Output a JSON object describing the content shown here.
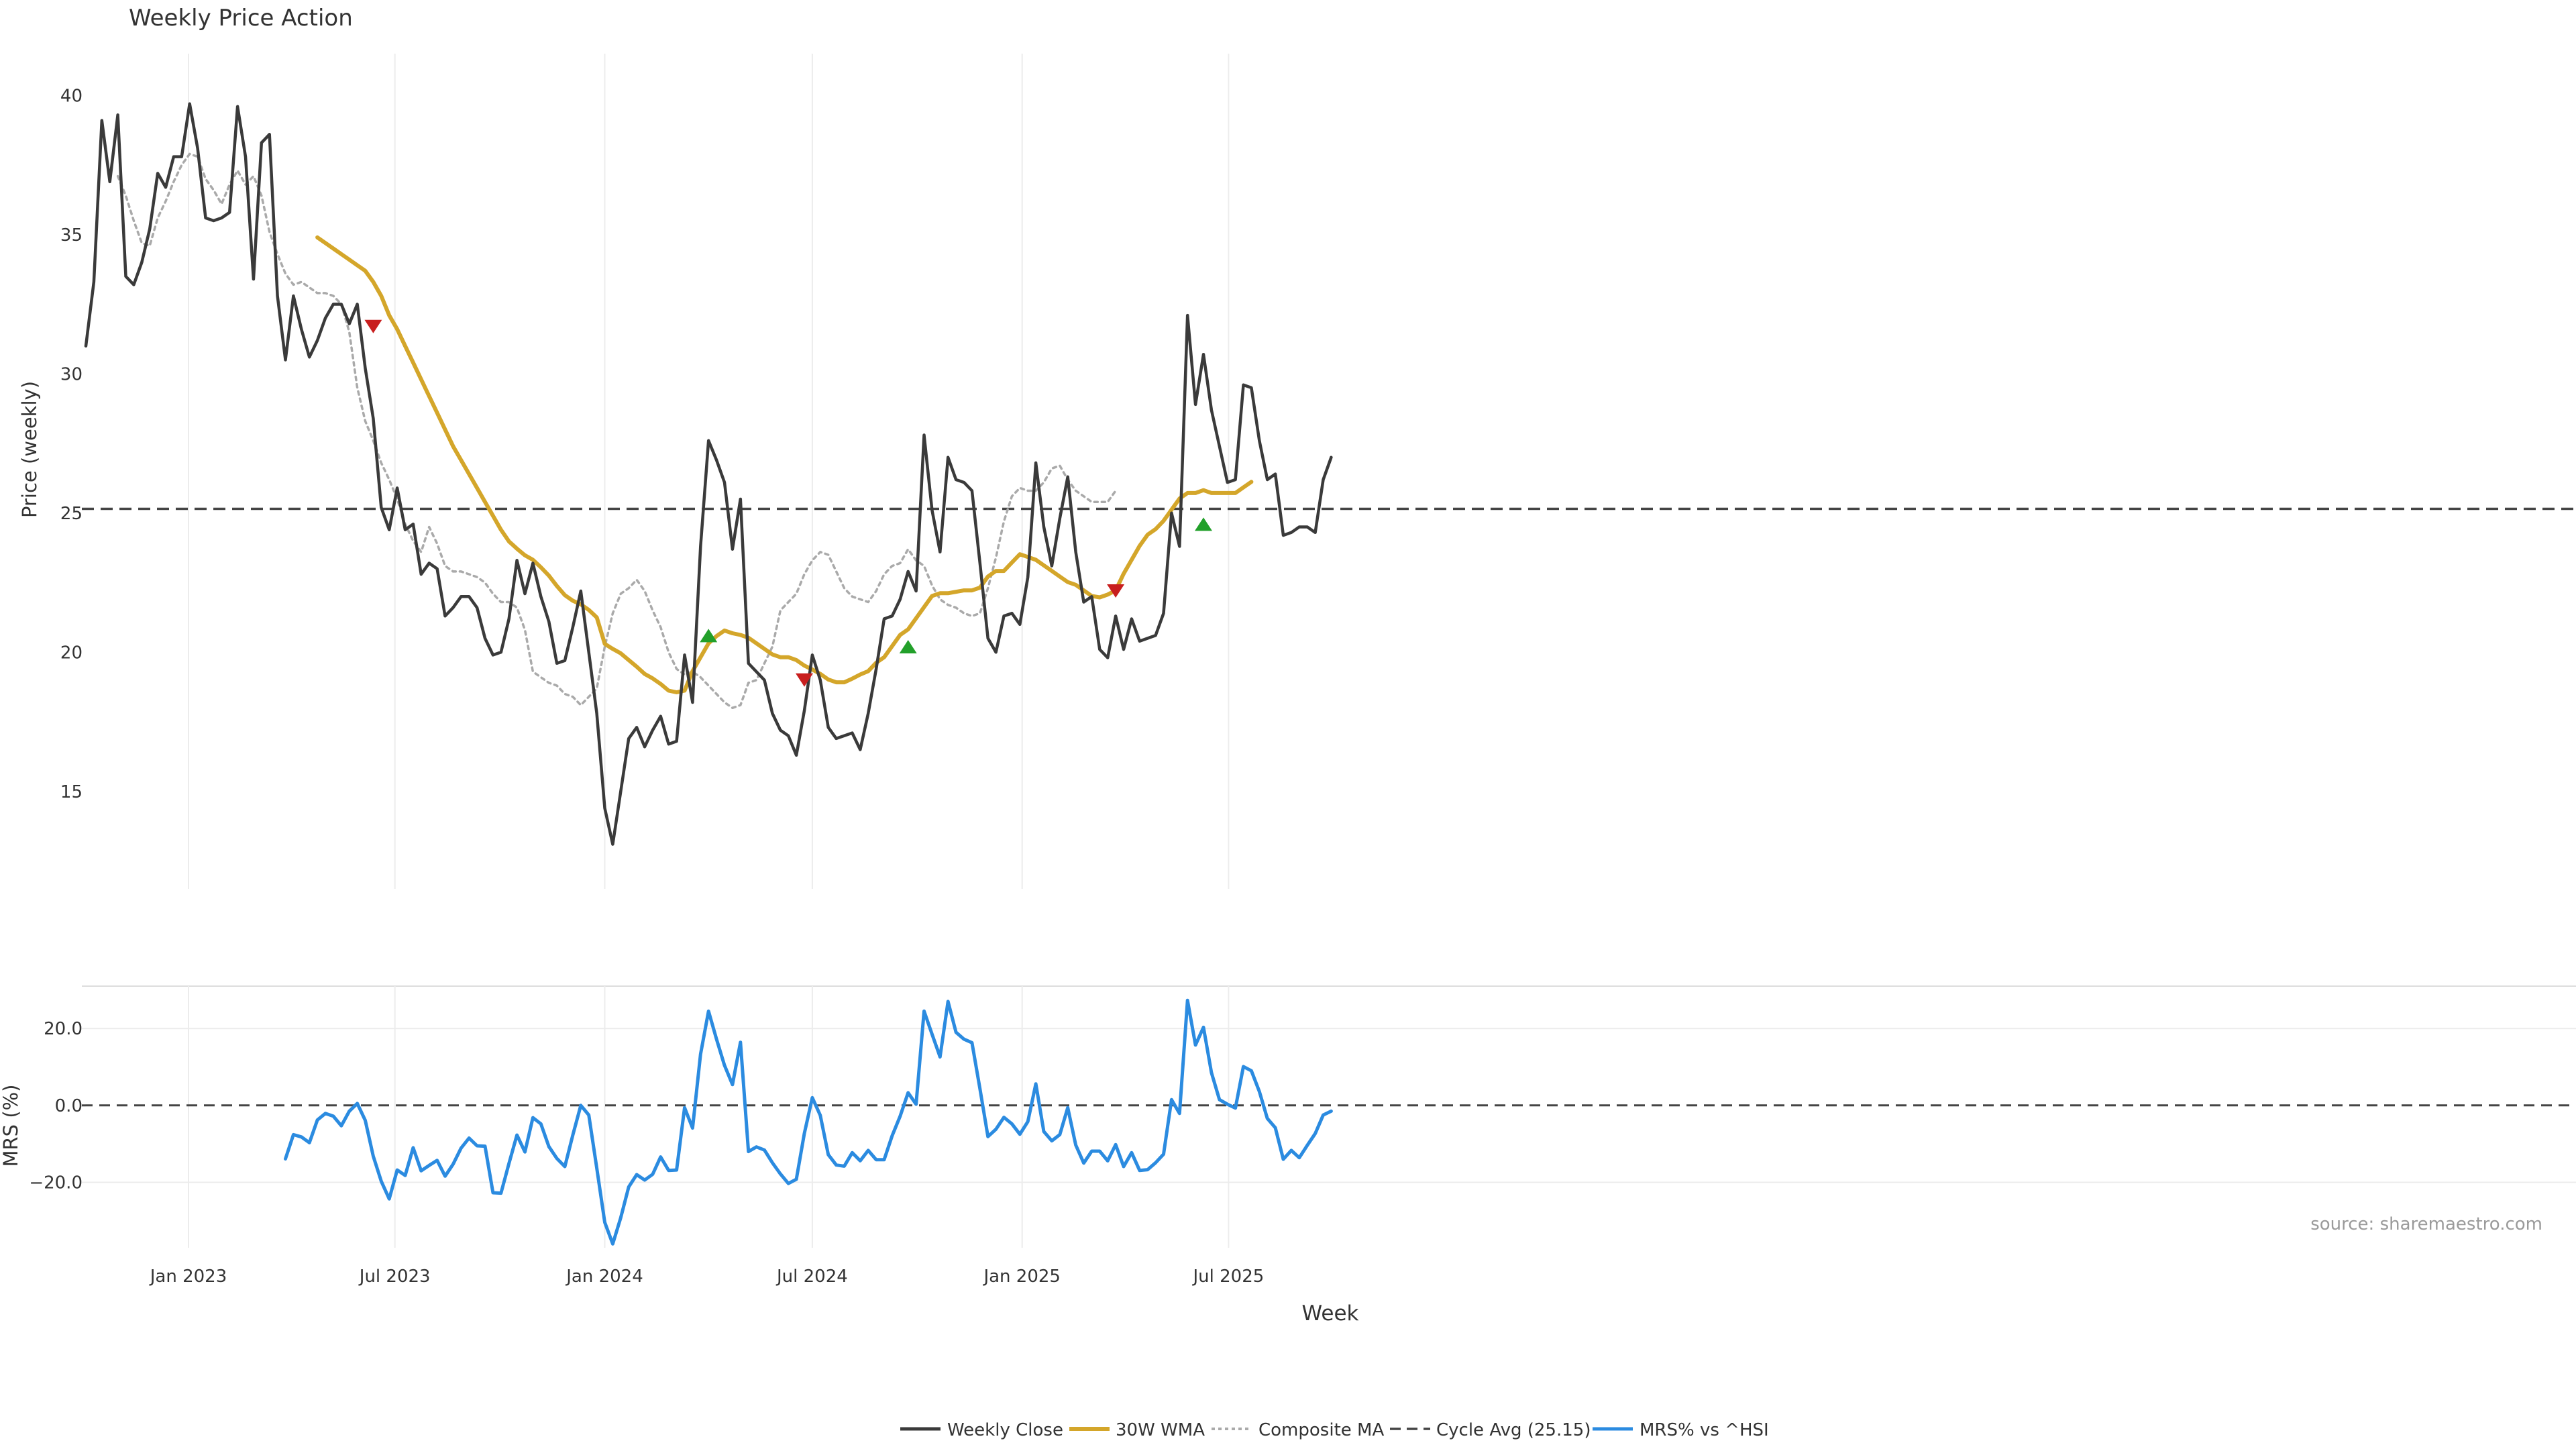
{
  "title": "Weekly Price Action",
  "source_note": "source: sharemaestro.com",
  "colors": {
    "close": "#3a3a3a",
    "wma": "#d4a62a",
    "composite": "#aaaaaa",
    "cycle": "#444444",
    "mrs": "#2b8be0",
    "buy": "#22a02a",
    "sell": "#c81e1e",
    "grid": "#ececec"
  },
  "legend": {
    "close": "Weekly Close",
    "wma": "30W WMA",
    "composite": "Composite MA",
    "cycle": "Cycle Avg (25.15)",
    "mrs": "MRS% vs ^HSI"
  },
  "chart_data": [
    {
      "type": "line",
      "panel": "price",
      "title": "Weekly Price Action",
      "ylabel": "Price (weekly)",
      "ylim": [
        11.5,
        41.5
      ],
      "yticks": [
        15,
        20,
        25,
        30,
        35,
        40
      ],
      "ytick_labels": [
        "15",
        "20",
        "25",
        "30",
        "35",
        "40"
      ],
      "x_start": "2022-10-03",
      "x_step_days": 7,
      "cycle_avg": 25.15,
      "series": [
        {
          "name": "Weekly Close",
          "start_index": 0,
          "values": [
            31.0,
            33.3,
            39.1,
            36.9,
            39.3,
            33.5,
            33.2,
            34.0,
            35.2,
            37.2,
            36.7,
            37.8,
            37.8,
            39.7,
            38.1,
            35.6,
            35.5,
            35.6,
            35.8,
            39.6,
            37.8,
            33.4,
            38.3,
            38.6,
            32.8,
            30.5,
            32.8,
            31.6,
            30.6,
            31.2,
            32.0,
            32.5,
            32.5,
            31.8,
            32.5,
            30.2,
            28.4,
            25.2,
            24.4,
            25.9,
            24.4,
            24.6,
            22.8,
            23.2,
            23.0,
            21.3,
            21.6,
            22.0,
            22.0,
            21.6,
            20.5,
            19.9,
            20.0,
            21.2,
            23.3,
            22.1,
            23.2,
            22.0,
            21.1,
            19.6,
            19.7,
            20.9,
            22.2,
            20.0,
            17.8,
            14.4,
            13.1,
            15.0,
            16.9,
            17.3,
            16.6,
            17.2,
            17.7,
            16.7,
            16.8,
            19.9,
            18.2,
            23.8,
            27.6,
            26.9,
            26.1,
            23.7,
            25.5,
            19.6,
            19.3,
            19.0,
            17.8,
            17.2,
            17.0,
            16.3,
            17.9,
            19.9,
            19.0,
            17.3,
            16.9,
            17.0,
            17.1,
            16.5,
            17.8,
            19.4,
            21.2,
            21.3,
            21.9,
            22.9,
            22.2,
            27.8,
            25.1,
            23.6,
            27.0,
            26.2,
            26.1,
            25.8,
            23.2,
            20.5,
            20.0,
            21.3,
            21.4,
            21.0,
            22.7,
            26.8,
            24.5,
            23.1,
            24.8,
            26.3,
            23.6,
            21.8,
            22.0,
            20.1,
            19.8,
            21.3,
            20.1,
            21.2,
            20.4,
            20.5,
            20.6,
            21.4,
            25.0,
            23.8,
            32.1,
            28.9,
            30.7,
            28.7,
            27.4,
            26.1,
            26.2,
            29.6,
            29.5,
            27.6,
            26.2,
            26.4,
            24.2,
            24.3,
            24.5,
            24.5,
            24.3,
            26.2,
            27.0
          ]
        },
        {
          "name": "30W WMA",
          "start_index": 29,
          "values": [
            34.9,
            34.7,
            34.5,
            34.3,
            34.1,
            33.9,
            33.7,
            33.3,
            32.8,
            32.1,
            31.6,
            31.0,
            30.4,
            29.8,
            29.2,
            28.6,
            28.0,
            27.4,
            26.9,
            26.4,
            25.9,
            25.4,
            24.9,
            24.4,
            23.98,
            23.72,
            23.48,
            23.32,
            23.05,
            22.75,
            22.38,
            22.05,
            21.85,
            21.72,
            21.52,
            21.25,
            20.3,
            20.12,
            19.96,
            19.72,
            19.48,
            19.22,
            19.06,
            18.86,
            18.62,
            18.56,
            18.62,
            19.32,
            19.82,
            20.32,
            20.58,
            20.78,
            20.68,
            20.62,
            20.52,
            20.32,
            20.12,
            19.92,
            19.82,
            19.82,
            19.72,
            19.52,
            19.38,
            19.22,
            19.02,
            18.92,
            18.92,
            19.05,
            19.2,
            19.32,
            19.62,
            19.82,
            20.22,
            20.62,
            20.82,
            21.22,
            21.62,
            22.02,
            22.12,
            22.12,
            22.17,
            22.22,
            22.22,
            22.32,
            22.72,
            22.92,
            22.92,
            23.22,
            23.52,
            23.42,
            23.32,
            23.12,
            22.92,
            22.72,
            22.52,
            22.42,
            22.22,
            22.02,
            21.97,
            22.07,
            22.22,
            22.82,
            23.32,
            23.82,
            24.22,
            24.42,
            24.72,
            25.12,
            25.52,
            25.72,
            25.72,
            25.82,
            25.72,
            25.72,
            25.72,
            25.72,
            25.92,
            26.12
          ]
        },
        {
          "name": "Composite MA",
          "start_index": 4,
          "values": [
            37.1,
            36.4,
            35.5,
            34.7,
            34.6,
            35.6,
            36.2,
            36.9,
            37.5,
            37.9,
            37.8,
            37.0,
            36.6,
            36.1,
            36.8,
            37.3,
            36.8,
            37.1,
            36.4,
            35.1,
            34.3,
            33.6,
            33.2,
            33.3,
            33.1,
            32.9,
            32.9,
            32.8,
            32.5,
            31.5,
            29.5,
            28.3,
            27.6,
            26.8,
            26.2,
            25.5,
            24.6,
            24.0,
            23.6,
            24.5,
            23.9,
            23.1,
            22.9,
            22.9,
            22.8,
            22.7,
            22.5,
            22.1,
            21.8,
            21.8,
            21.6,
            20.8,
            19.3,
            19.1,
            18.9,
            18.8,
            18.5,
            18.4,
            18.1,
            18.4,
            18.7,
            20.2,
            21.4,
            22.1,
            22.3,
            22.6,
            22.2,
            21.5,
            20.9,
            20.0,
            19.4,
            19.2,
            19.3,
            19.1,
            18.8,
            18.5,
            18.2,
            18.0,
            18.1,
            18.9,
            19.0,
            19.6,
            20.2,
            21.5,
            21.8,
            22.1,
            22.8,
            23.3,
            23.6,
            23.5,
            22.9,
            22.3,
            22.0,
            21.9,
            21.8,
            22.2,
            22.8,
            23.1,
            23.2,
            23.7,
            23.3,
            23.1,
            22.4,
            21.9,
            21.7,
            21.6,
            21.4,
            21.3,
            21.4,
            22.3,
            23.4,
            24.7,
            25.6,
            25.9,
            25.8,
            25.8,
            26.1,
            26.6,
            26.7,
            26.2,
            25.8,
            25.6,
            25.4,
            25.4,
            25.4,
            25.8
          ]
        }
      ],
      "signals": [
        {
          "type": "sell",
          "index": 36,
          "value": 31.7
        },
        {
          "type": "buy",
          "index": 78,
          "value": 20.6
        },
        {
          "type": "sell",
          "index": 90,
          "value": 19.0
        },
        {
          "type": "buy",
          "index": 103,
          "value": 20.2
        },
        {
          "type": "sell",
          "index": 129,
          "value": 22.2
        },
        {
          "type": "buy",
          "index": 140,
          "value": 24.6
        }
      ]
    },
    {
      "type": "line",
      "panel": "mrs",
      "ylabel": "MRS (%)",
      "xlabel": "Week",
      "ylim": [
        -37,
        31
      ],
      "yticks": [
        20,
        0,
        -20
      ],
      "ytick_labels": [
        "20.0",
        "0.0",
        "−20.0"
      ],
      "xtick_labels": [
        "Jan 2023",
        "Jul 2023",
        "Jan 2024",
        "Jul 2024",
        "Jan 2025",
        "Jul 2025"
      ],
      "xtick_dates": [
        "2023-01-01",
        "2023-07-01",
        "2024-01-01",
        "2024-07-01",
        "2025-01-01",
        "2025-07-01"
      ],
      "zero_line": 0,
      "series": [
        {
          "name": "MRS% vs ^HSI",
          "start_index": 25,
          "values": [
            -13.9,
            -7.6,
            -8.2,
            -9.7,
            -3.8,
            -2.1,
            -2.8,
            -5.3,
            -1.5,
            0.5,
            -3.9,
            -13.2,
            -19.7,
            -24.3,
            -16.8,
            -18.2,
            -11.0,
            -17.0,
            -15.6,
            -14.3,
            -18.4,
            -15.3,
            -11.1,
            -8.5,
            -10.5,
            -10.6,
            -22.7,
            -22.8,
            -15.1,
            -7.7,
            -12.1,
            -3.2,
            -4.8,
            -10.7,
            -13.8,
            -15.9,
            -7.7,
            0.0,
            -2.5,
            -16.3,
            -30.4,
            -36.0,
            -29.2,
            -21.2,
            -18.0,
            -19.4,
            -17.9,
            -13.4,
            -16.9,
            -16.8,
            -0.6,
            -5.9,
            13.3,
            24.5,
            17.2,
            10.4,
            5.4,
            16.4,
            -12.0,
            -10.8,
            -11.6,
            -14.9,
            -17.8,
            -20.3,
            -19.2,
            -7.3,
            2.0,
            -2.6,
            -12.8,
            -15.5,
            -15.8,
            -12.3,
            -14.4,
            -11.7,
            -14.1,
            -14.1,
            -7.9,
            -2.8,
            3.3,
            0.3,
            24.5,
            18.5,
            12.6,
            27.0,
            19.0,
            17.2,
            16.3,
            4.3,
            -8.1,
            -6.2,
            -3.1,
            -4.8,
            -7.5,
            -4.2,
            5.6,
            -6.8,
            -9.2,
            -7.6,
            -0.6,
            -10.3,
            -15.0,
            -11.9,
            -11.9,
            -14.4,
            -10.2,
            -15.9,
            -12.3,
            -16.9,
            -16.7,
            -14.9,
            -12.7,
            1.5,
            -2.1,
            27.3,
            15.7,
            20.3,
            8.5,
            1.5,
            0.3,
            -0.7,
            10.1,
            9.0,
            3.6,
            -3.4,
            -5.8,
            -14.0,
            -11.7,
            -13.6,
            -10.4,
            -7.3,
            -2.5,
            -1.5
          ]
        }
      ]
    }
  ]
}
